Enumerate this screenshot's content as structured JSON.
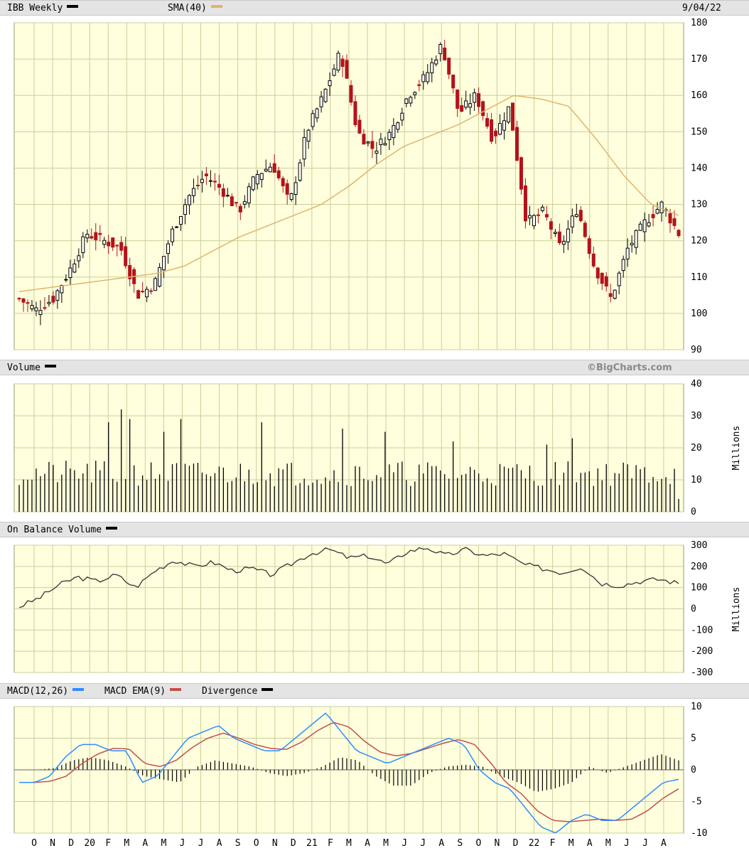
{
  "header": {
    "symbol_label": "IBB Weekly",
    "sma_label": "SMA(40)",
    "date": "9/04/22"
  },
  "volume_header": {
    "label": "Volume",
    "watermark": "©BigCharts.com"
  },
  "obv_header": {
    "label": "On Balance Volume"
  },
  "macd_header": {
    "macd_label": "MACD(12,26)",
    "ema_label": "MACD EMA(9)",
    "div_label": "Divergence"
  },
  "colors": {
    "plot_bg": "#ffffdd",
    "grid": "#c9cf9c",
    "up": "#000000",
    "down": "#b3131a",
    "sma": "#e0b46e",
    "macd": "#2f8cff",
    "ema": "#c0504d"
  },
  "chart_data": [
    {
      "type": "candlestick",
      "title": "IBB Weekly",
      "ylim": [
        90,
        180
      ],
      "yticks": [
        90,
        100,
        110,
        120,
        130,
        140,
        150,
        160,
        170,
        180
      ],
      "x_labels": [
        "O",
        "N",
        "D",
        "20",
        "F",
        "M",
        "A",
        "M",
        "J",
        "J",
        "A",
        "S",
        "O",
        "N",
        "D",
        "21",
        "F",
        "M",
        "A",
        "M",
        "J",
        "J",
        "A",
        "S",
        "O",
        "N",
        "D",
        "22",
        "F",
        "M",
        "A",
        "M",
        "J",
        "J",
        "A"
      ],
      "close_anchors": [
        104,
        101,
        104,
        112,
        122,
        120,
        118,
        105,
        108,
        122,
        132,
        138,
        134,
        128,
        138,
        141,
        130,
        150,
        160,
        172,
        150,
        145,
        150,
        160,
        165,
        174,
        155,
        160,
        148,
        157,
        125,
        128,
        118,
        129,
        113,
        104,
        118,
        125,
        130,
        122
      ],
      "sma_label": "SMA(40)",
      "sma_anchors": [
        106,
        107,
        108,
        109,
        110,
        111,
        113,
        117,
        121,
        124,
        127,
        130,
        135,
        141,
        146,
        149,
        152,
        156,
        160,
        159,
        157,
        148,
        138,
        130,
        127
      ]
    },
    {
      "type": "bar",
      "title": "Volume",
      "ylabel": "Millions",
      "ylim": [
        0,
        40
      ],
      "yticks": [
        0,
        10,
        20,
        30,
        40
      ],
      "spikes_millions": [
        32,
        29,
        28,
        25,
        29,
        28,
        26,
        25,
        22,
        21,
        23
      ],
      "typical_range_millions": [
        8,
        16
      ]
    },
    {
      "type": "line",
      "title": "On Balance Volume",
      "ylabel": "Millions",
      "ylim": [
        -300,
        300
      ],
      "yticks": [
        -300,
        -200,
        -100,
        0,
        100,
        200,
        300
      ],
      "values_anchors_millions": [
        10,
        50,
        110,
        150,
        130,
        160,
        100,
        180,
        230,
        200,
        220,
        180,
        190,
        160,
        210,
        260,
        280,
        240,
        250,
        210,
        270,
        290,
        250,
        280,
        250,
        260,
        210,
        190,
        170,
        200,
        120,
        110,
        130,
        140,
        120
      ]
    },
    {
      "type": "line",
      "title": "MACD(12,26)",
      "ylim": [
        -10,
        10
      ],
      "yticks": [
        -10,
        -5,
        0,
        5,
        10
      ],
      "series": [
        {
          "name": "MACD(12,26)",
          "values_anchors": [
            -2,
            -2,
            -1,
            2,
            4,
            4,
            3,
            3,
            -2,
            -1,
            2,
            5,
            6,
            7,
            5,
            4,
            3,
            3,
            5,
            7,
            9,
            6,
            3,
            2,
            1,
            2,
            3,
            4,
            5,
            4,
            0,
            -2,
            -3,
            -6,
            -9,
            -10,
            -8,
            -7,
            -8,
            -8,
            -6,
            -4,
            -2,
            -1.5
          ]
        },
        {
          "name": "MACD EMA(9)",
          "values_anchors": [
            -2,
            -2,
            -1.8,
            -1,
            1,
            2.5,
            3.4,
            3.3,
            1,
            0.5,
            1.5,
            3.5,
            5,
            5.8,
            5,
            4,
            3.4,
            3.2,
            4.4,
            6.2,
            7.5,
            6.8,
            4.5,
            2.8,
            2.2,
            2.6,
            3.4,
            4.2,
            4.8,
            4,
            1.2,
            -2,
            -3.8,
            -6.5,
            -8,
            -8.2,
            -8,
            -7.8,
            -8,
            -7.8,
            -6.5,
            -4.5,
            -3
          ]
        },
        {
          "name": "Divergence",
          "values_anchors": [
            0,
            0,
            0.3,
            1.5,
            2,
            1.5,
            0.5,
            -1,
            -1.5,
            -2,
            0.5,
            1.5,
            1,
            0.5,
            -0.5,
            -1,
            -0.5,
            0.5,
            2,
            1.5,
            -1,
            -2.5,
            -2.5,
            -0.5,
            0.5,
            0.8,
            0.5,
            -1,
            -2,
            -3.5,
            -3,
            -2,
            0.5,
            -0.5,
            0.5,
            1.5,
            2.5,
            1.5
          ]
        }
      ]
    }
  ]
}
